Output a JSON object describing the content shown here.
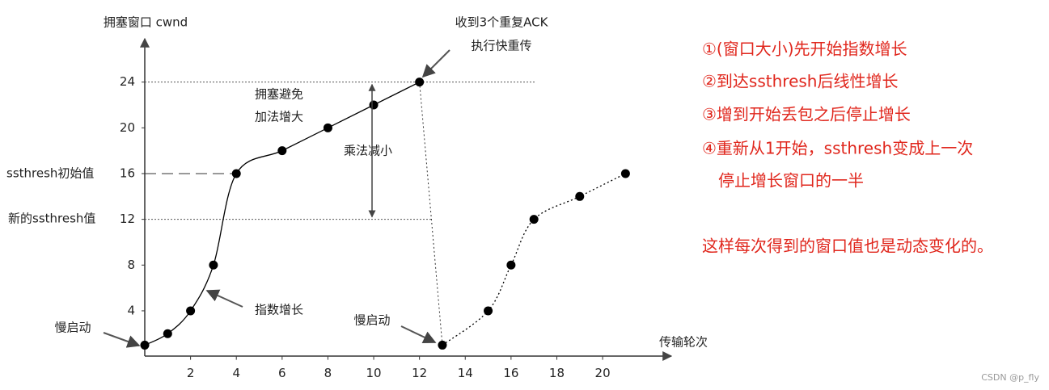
{
  "chart_data": {
    "type": "line",
    "y_axis_title": "拥塞窗口 cwnd",
    "x_axis_title": "传输轮次",
    "xlim": [
      0,
      23
    ],
    "ylim": [
      0,
      28
    ],
    "xticks": [
      2,
      4,
      6,
      8,
      10,
      12,
      14,
      16,
      18,
      20
    ],
    "yticks": [
      4,
      8,
      12,
      16,
      20,
      24
    ],
    "series": [
      {
        "color": "#000000",
        "line_style": "solid",
        "x": [
          0,
          1,
          2,
          3,
          4,
          6,
          8,
          10,
          12
        ],
        "values": [
          1,
          2,
          4,
          8,
          16,
          18,
          20,
          22,
          24
        ]
      },
      {
        "color": "#000000",
        "line_style": "dotted",
        "x": [
          13,
          15,
          16,
          17,
          19,
          21
        ],
        "values": [
          1,
          4,
          8,
          12,
          14,
          16
        ]
      }
    ],
    "annotations": {
      "fast_retransmit": [
        "收到3个重复ACK",
        "执行快重传"
      ],
      "congestion_avoidance": [
        "拥塞避免",
        "加法增大"
      ],
      "multiplicative_decrease": "乘法减小",
      "exponential_growth": "指数增长",
      "slow_start_1": "慢启动",
      "slow_start_2": "慢启动",
      "initial_ssthresh": "ssthresh初始值",
      "new_ssthresh": "新的ssthresh值"
    }
  },
  "notes": [
    "①(窗口大小)先开始指数增长",
    "②到达ssthresh后线性增长",
    "③增到开始丢包之后停止增长",
    "④重新从1开始，ssthresh变成上一次",
    "停止增长窗口的一半",
    "这样每次得到的窗口值也是动态变化的。"
  ],
  "footer": "CSDN @p_fly"
}
